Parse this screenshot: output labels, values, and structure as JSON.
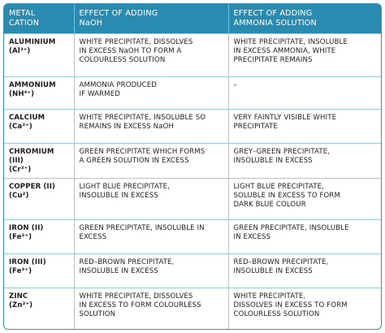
{
  "headers": {
    "cation": [
      "METAL",
      "CATION"
    ],
    "naoh": [
      "EFFECT OF ADDING",
      "NaOH"
    ],
    "ammonia": [
      "EFFECT OF ADDING",
      "AMMONIA SOLUTION"
    ]
  },
  "rows": [
    {
      "name": "ALUMINIUM",
      "formula": "(Al³⁺)",
      "naoh": [
        "WHITE PRECIPITATE, DISSOLVES",
        "IN EXCESS NaOH TO FORM A",
        "COLOURLESS SOLUTION"
      ],
      "ammonia": [
        "WHITE PRECIPITATE, INSOLUBLE",
        "IN EXCESS AMMONIA, WHITE",
        "PRECIPITATE REMAINS"
      ]
    },
    {
      "name": "AMMONIUM",
      "formula": "(NH⁴⁺)",
      "naoh": [
        "AMMONIA PRODUCED",
        "IF WARMED"
      ],
      "ammonia": [
        "–"
      ]
    },
    {
      "name": "CALCIUM",
      "formula": "(Ca²⁺)",
      "naoh": [
        "WHITE PRECIPITATE, INSOLUBLE SO",
        "REMAINS IN EXCESS NaOH"
      ],
      "ammonia": [
        "VERY FAINTLY VISIBLE WHITE",
        "PRECIPITATE"
      ]
    },
    {
      "name": "CHROMIUM (III)",
      "formula": "(Cr³⁺)",
      "naoh": [
        "GREEN PRECIPITATE WHICH FORMS",
        "A GREEN SOLUTION IN EXCESS"
      ],
      "ammonia": [
        "GREY–GREEN PRECIPITATE,",
        "INSOLUBLE IN EXCESS"
      ]
    },
    {
      "name": "COPPER (II)",
      "formula": "(Cu²)",
      "naoh": [
        "LIGHT BLUE PRECIPITATE,",
        "INSOLUBLE IN EXCESS"
      ],
      "ammonia": [
        "LIGHT BLUE PRECIPITATE,",
        "SOLUBLE IN EXCESS TO FORM",
        "DARK BLUE COLOUR"
      ]
    },
    {
      "name": "IRON (II)",
      "formula": "(Fe²⁺)",
      "naoh": [
        "GREEN PRECIPITATE, INSOLUBLE IN",
        "EXCESS"
      ],
      "ammonia": [
        "GREEN PRECIPITATE, INSOLUBLE",
        "IN EXCESS"
      ]
    },
    {
      "name": "IRON (III)",
      "formula": "(Fe³⁺)",
      "naoh": [
        "RED–BROWN PRECIPITATE,",
        "INSOLUBLE IN EXCESS"
      ],
      "ammonia": [
        "RED–BROWN PRECIPITATE,",
        "INSOLUBLE IN EXCESS"
      ]
    },
    {
      "name": "ZINC",
      "formula": "(Zn²⁺)",
      "naoh": [
        "WHITE PRECIPITATE, DISSOLVES",
        "IN EXCESS TO FORM COLOURLESS",
        "SOLUTION"
      ],
      "ammonia": [
        "WHITE PRECIPITATE,",
        "DISSOLVES IN EXCESS TO FORM",
        "COLOURLESS SOLUTION"
      ]
    }
  ]
}
